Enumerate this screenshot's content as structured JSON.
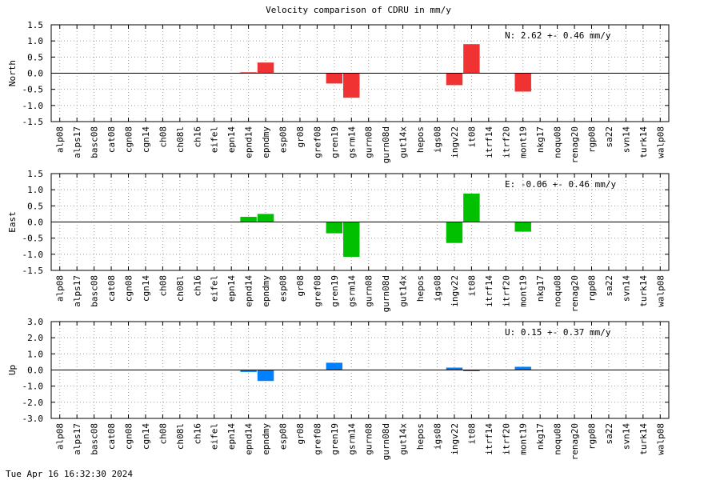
{
  "title": "Velocity comparison of CDRU in mm/y",
  "footer": "Tue Apr 16 16:32:30 2024",
  "chart_data": [
    {
      "type": "bar",
      "ylabel": "North",
      "ylim": [
        -1.5,
        1.5
      ],
      "yticks": [
        "1.5",
        "1.0",
        "0.5",
        "0.0",
        "-0.5",
        "-1.0",
        "-1.5"
      ],
      "annotation": "N:   2.62 +-  0.46 mm/y",
      "color": "#f03232",
      "grid": true,
      "categories": [
        "alp08",
        "alps17",
        "basc08",
        "cat08",
        "cgn08",
        "cgn14",
        "ch08",
        "ch08l",
        "ch16",
        "eifel",
        "epn14",
        "epnd14",
        "epndmy",
        "esp08",
        "gr08",
        "gref08",
        "gren19",
        "gsrm14",
        "gurn08",
        "gurn08d",
        "gut14x",
        "hepos",
        "igs08",
        "ingv22",
        "it08",
        "itrf14",
        "itrf20",
        "mont19",
        "nkg17",
        "noqu08",
        "renag20",
        "rgp08",
        "sa22",
        "svn14",
        "turk14",
        "walp08"
      ],
      "values": [
        null,
        null,
        null,
        null,
        null,
        null,
        null,
        null,
        null,
        null,
        null,
        0.03,
        0.33,
        null,
        null,
        null,
        -0.32,
        -0.76,
        null,
        null,
        null,
        null,
        null,
        -0.37,
        0.9,
        null,
        null,
        -0.57,
        null,
        null,
        null,
        null,
        null,
        null,
        null,
        null
      ]
    },
    {
      "type": "bar",
      "ylabel": "East",
      "ylim": [
        -1.5,
        1.5
      ],
      "yticks": [
        "1.5",
        "1.0",
        "0.5",
        "0.0",
        "-0.5",
        "-1.0",
        "-1.5"
      ],
      "annotation": "E:  -0.06 +-  0.46 mm/y",
      "color": "#00c000",
      "grid": true,
      "categories": [
        "alp08",
        "alps17",
        "basc08",
        "cat08",
        "cgn08",
        "cgn14",
        "ch08",
        "ch08l",
        "ch16",
        "eifel",
        "epn14",
        "epnd14",
        "epndmy",
        "esp08",
        "gr08",
        "gref08",
        "gren19",
        "gsrm14",
        "gurn08",
        "gurn08d",
        "gut14x",
        "hepos",
        "igs08",
        "ingv22",
        "it08",
        "itrf14",
        "itrf20",
        "mont19",
        "nkg17",
        "noqu08",
        "renag20",
        "rgp08",
        "sa22",
        "svn14",
        "turk14",
        "walp08"
      ],
      "values": [
        null,
        null,
        null,
        null,
        null,
        null,
        null,
        null,
        null,
        null,
        null,
        0.16,
        0.25,
        null,
        null,
        null,
        -0.35,
        -1.08,
        null,
        null,
        null,
        null,
        null,
        -0.65,
        0.88,
        null,
        null,
        -0.3,
        null,
        null,
        null,
        null,
        null,
        null,
        null,
        null
      ]
    },
    {
      "type": "bar",
      "ylabel": "Up",
      "ylim": [
        -3.0,
        3.0
      ],
      "yticks": [
        "3.0",
        "2.0",
        "1.0",
        "0.0",
        "-1.0",
        "-2.0",
        "-3.0"
      ],
      "annotation": "U:   0.15 +-  0.37 mm/y",
      "color": "#0080ff",
      "grid": true,
      "categories": [
        "alp08",
        "alps17",
        "basc08",
        "cat08",
        "cgn08",
        "cgn14",
        "ch08",
        "ch08l",
        "ch16",
        "eifel",
        "epn14",
        "epnd14",
        "epndmy",
        "esp08",
        "gr08",
        "gref08",
        "gren19",
        "gsrm14",
        "gurn08",
        "gurn08d",
        "gut14x",
        "hepos",
        "igs08",
        "ingv22",
        "it08",
        "itrf14",
        "itrf20",
        "mont19",
        "nkg17",
        "noqu08",
        "renag20",
        "rgp08",
        "sa22",
        "svn14",
        "turk14",
        "walp08"
      ],
      "values": [
        null,
        null,
        null,
        null,
        null,
        null,
        null,
        null,
        null,
        null,
        null,
        -0.12,
        -0.68,
        null,
        null,
        null,
        0.45,
        null,
        null,
        null,
        null,
        null,
        null,
        0.15,
        -0.07,
        null,
        null,
        0.2,
        null,
        null,
        null,
        null,
        null,
        null,
        null,
        null
      ]
    }
  ]
}
